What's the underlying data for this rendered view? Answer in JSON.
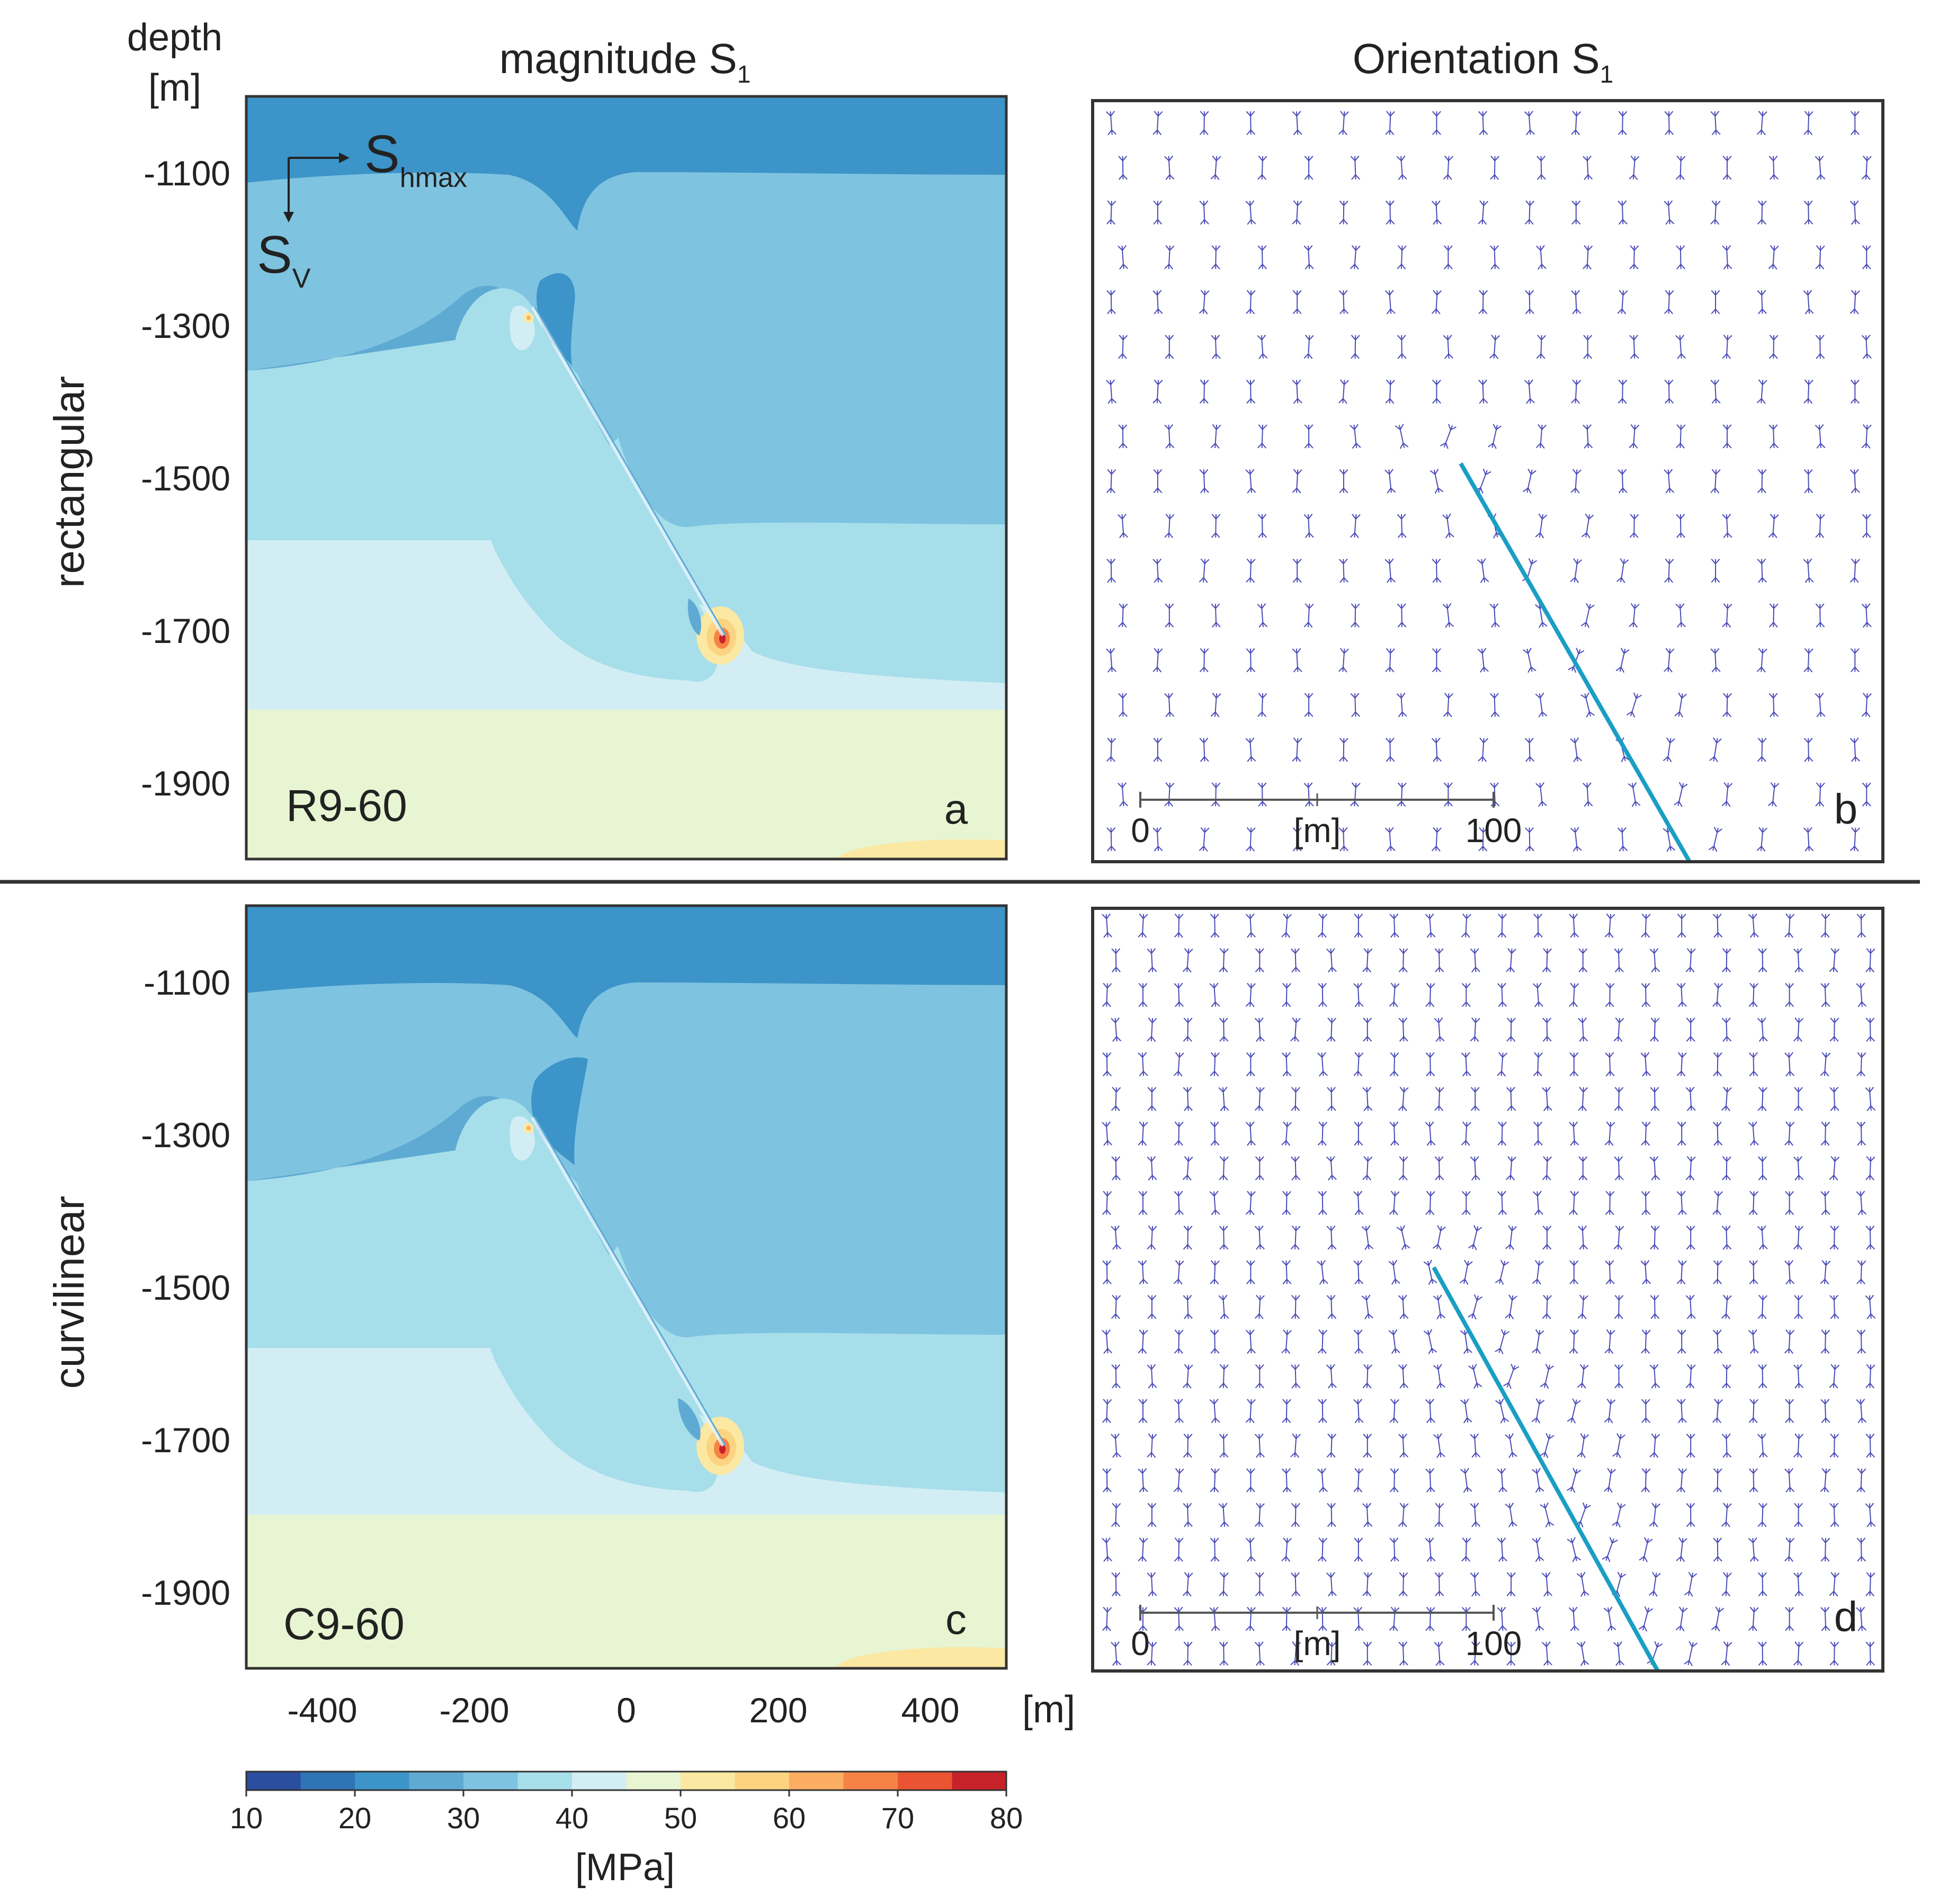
{
  "figure": {
    "column_titles": {
      "magnitude": "magnitude S",
      "orientation": "Orientation S",
      "subscript": "1"
    },
    "row_labels": [
      "rectangular",
      "curvilinear"
    ],
    "depth_axis_label_line1": "depth",
    "depth_axis_label_line2": "[m]",
    "x_axis_unit": "[m]",
    "stress_axes": {
      "horizontal": "S",
      "horizontal_sub": "hmax",
      "vertical": "S",
      "vertical_sub": "V"
    },
    "scale_bar": {
      "start": "0",
      "unit": "[m]",
      "end": "100"
    },
    "colorbar_label": "[MPa]"
  },
  "chart_data": [
    {
      "type": "heatmap",
      "panel_letter": "a",
      "case_label": "R9-60",
      "row": "rectangular",
      "quantity": "magnitude S1",
      "xlim": [
        -500,
        500
      ],
      "ylim": [
        -2000,
        -1000
      ],
      "x_ticks": [],
      "y_ticks": [
        -1100,
        -1300,
        -1500,
        -1700,
        -1900
      ],
      "y_label": "depth [m]",
      "colorscale": "MPa"
    },
    {
      "type": "scatter",
      "panel_letter": "b",
      "row": "rectangular",
      "quantity": "orientation S1",
      "fault_trace_color": "#1a9ec4",
      "scale_bar_ticks": [
        "0",
        "100"
      ],
      "scale_bar_unit": "[m]"
    },
    {
      "type": "heatmap",
      "panel_letter": "c",
      "case_label": "C9-60",
      "row": "curvilinear",
      "quantity": "magnitude S1",
      "xlim": [
        -500,
        500
      ],
      "ylim": [
        -2000,
        -1000
      ],
      "x_ticks": [
        -400,
        -200,
        0,
        200,
        400
      ],
      "y_ticks": [
        -1100,
        -1300,
        -1500,
        -1700,
        -1900
      ],
      "x_label": "[m]",
      "colorscale": "MPa"
    },
    {
      "type": "scatter",
      "panel_letter": "d",
      "row": "curvilinear",
      "quantity": "orientation S1",
      "fault_trace_color": "#1a9ec4",
      "scale_bar_ticks": [
        "0",
        "100"
      ],
      "scale_bar_unit": "[m]"
    },
    {
      "type": "colorbar",
      "label": "[MPa]",
      "range": [
        10,
        80
      ],
      "ticks": [
        10,
        20,
        30,
        40,
        50,
        60,
        70,
        80
      ],
      "bins": [
        {
          "from": 10,
          "to": 15,
          "color": "#2b4e9e"
        },
        {
          "from": 15,
          "to": 20,
          "color": "#2f74b5"
        },
        {
          "from": 20,
          "to": 25,
          "color": "#3c94c8"
        },
        {
          "from": 25,
          "to": 30,
          "color": "#5faad3"
        },
        {
          "from": 30,
          "to": 35,
          "color": "#7ec3e0"
        },
        {
          "from": 35,
          "to": 40,
          "color": "#a6deea"
        },
        {
          "from": 40,
          "to": 45,
          "color": "#d2eef4"
        },
        {
          "from": 45,
          "to": 50,
          "color": "#e8f5d2"
        },
        {
          "from": 50,
          "to": 55,
          "color": "#fbe8a2"
        },
        {
          "from": 55,
          "to": 60,
          "color": "#fcd381"
        },
        {
          "from": 60,
          "to": 65,
          "color": "#fbae62"
        },
        {
          "from": 65,
          "to": 70,
          "color": "#f68346"
        },
        {
          "from": 70,
          "to": 75,
          "color": "#ea5432"
        },
        {
          "from": 75,
          "to": 80,
          "color": "#c7222a"
        }
      ]
    }
  ]
}
